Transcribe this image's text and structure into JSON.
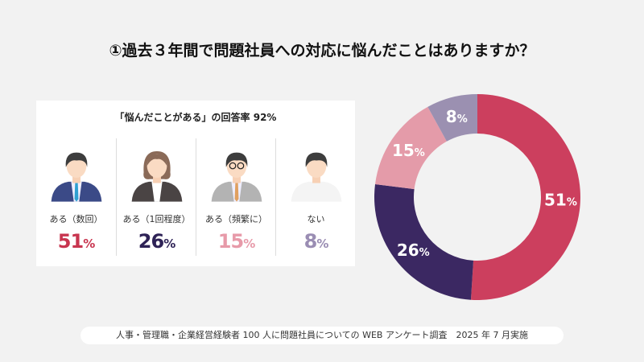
{
  "title": "①過去３年間で問題社員への対応に悩んだことはありますか？",
  "card": {
    "title": "「悩んだことがある」の回答率 92%",
    "items": [
      {
        "label": "ある（数回）",
        "value": "51",
        "unit": "%",
        "color": "#c8354f",
        "icon": "businessman-icon"
      },
      {
        "label": "ある（1回程度）",
        "value": "26",
        "unit": "%",
        "color": "#2e2256",
        "icon": "businesswoman-icon"
      },
      {
        "label": "ある（頻繁に）",
        "value": "15",
        "unit": "%",
        "color": "#e79aa9",
        "icon": "man-glasses-icon"
      },
      {
        "label": "ない",
        "value": "8",
        "unit": "%",
        "color": "#9a8db3",
        "icon": "person-icon"
      }
    ]
  },
  "footer": "人事・管理職・企業経営経験者 100 人に問題社員についての WEB アンケート調査　2025 年 7 月実施",
  "chart_data": {
    "type": "pie",
    "donut": true,
    "start": "top",
    "direction": "clockwise",
    "categories": [
      "ある（数回）",
      "ある（1回程度）",
      "ある（頻繁に）",
      "ない"
    ],
    "values": [
      51,
      26,
      15,
      8
    ],
    "labels": [
      "51",
      "26",
      "15",
      "8"
    ],
    "unit": "%",
    "colors": [
      "#cc3f5e",
      "#3b2862",
      "#e49ba9",
      "#9b90b1"
    ]
  }
}
